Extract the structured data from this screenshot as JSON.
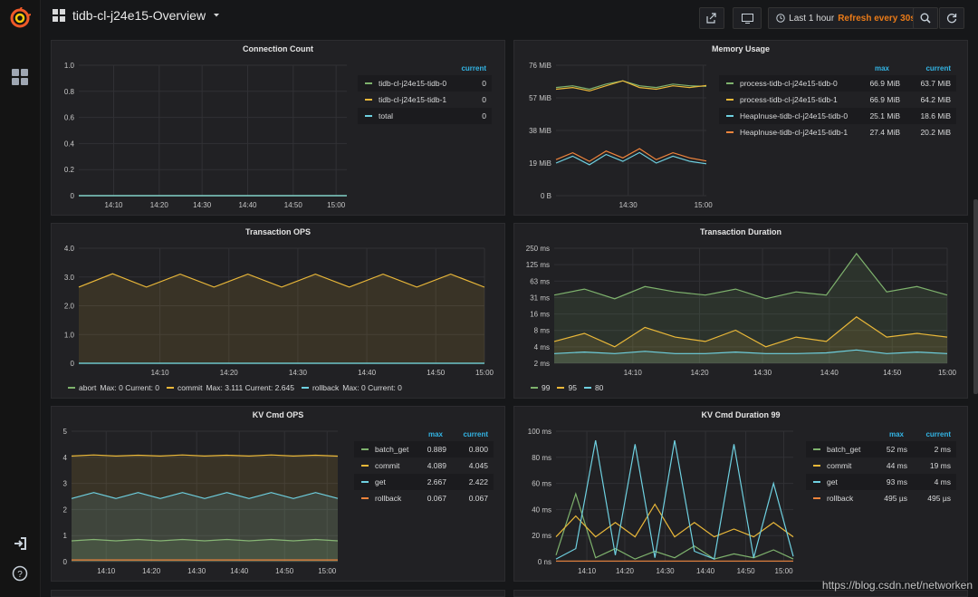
{
  "dashboard": {
    "title": "tidb-cl-j24e15-Overview"
  },
  "toolbar": {
    "time_range": "Last 1 hour",
    "refresh": "Refresh every 30s"
  },
  "icons": {
    "logo": "grafana-logo-icon",
    "dashboards": "dashboards-icon",
    "signin": "sign-in-icon",
    "help": "help-icon",
    "share": "share-icon",
    "tv": "tv-mode-icon",
    "clock": "clock-icon",
    "search": "zoom-out-icon",
    "refresh": "refresh-icon",
    "caret": "caret-down-icon"
  },
  "colors": {
    "green": "#7eb26d",
    "yellow": "#eab839",
    "cyan": "#6ed0e0",
    "orange": "#ef843c",
    "accent_blue": "#33b5e5",
    "refresh_orange": "#eb7b18"
  },
  "panels": {
    "connection_count": {
      "title": "Connection Count",
      "legend_header": {
        "current": "current"
      },
      "legend": [
        {
          "name": "tidb-cl-j24e15-tidb-0",
          "current": "0",
          "color": "#7eb26d"
        },
        {
          "name": "tidb-cl-j24e15-tidb-1",
          "current": "0",
          "color": "#eab839"
        },
        {
          "name": "total",
          "current": "0",
          "color": "#6ed0e0"
        }
      ]
    },
    "memory_usage": {
      "title": "Memory Usage",
      "legend_header": {
        "max": "max",
        "current": "current"
      },
      "legend": [
        {
          "name": "process-tidb-cl-j24e15-tidb-0",
          "max": "66.9 MiB",
          "current": "63.7 MiB",
          "color": "#7eb26d"
        },
        {
          "name": "process-tidb-cl-j24e15-tidb-1",
          "max": "66.9 MiB",
          "current": "64.2 MiB",
          "color": "#eab839"
        },
        {
          "name": "HeapInuse-tidb-cl-j24e15-tidb-0",
          "max": "25.1 MiB",
          "current": "18.6 MiB",
          "color": "#6ed0e0"
        },
        {
          "name": "HeapInuse-tidb-cl-j24e15-tidb-1",
          "max": "27.4 MiB",
          "current": "20.2 MiB",
          "color": "#ef843c"
        }
      ]
    },
    "transaction_ops": {
      "title": "Transaction OPS",
      "legend": [
        {
          "name": "abort",
          "stats": "Max: 0  Current: 0",
          "color": "#7eb26d"
        },
        {
          "name": "commit",
          "stats": "Max: 3.111  Current: 2.645",
          "color": "#eab839"
        },
        {
          "name": "rollback",
          "stats": "Max: 0  Current: 0",
          "color": "#6ed0e0"
        }
      ]
    },
    "transaction_duration": {
      "title": "Transaction Duration",
      "legend": [
        {
          "name": "99",
          "color": "#7eb26d"
        },
        {
          "name": "95",
          "color": "#eab839"
        },
        {
          "name": "80",
          "color": "#6ed0e0"
        }
      ]
    },
    "kv_cmd_ops": {
      "title": "KV Cmd OPS",
      "legend_header": {
        "max": "max",
        "current": "current"
      },
      "legend": [
        {
          "name": "batch_get",
          "max": "0.889",
          "current": "0.800",
          "color": "#7eb26d"
        },
        {
          "name": "commit",
          "max": "4.089",
          "current": "4.045",
          "color": "#eab839"
        },
        {
          "name": "get",
          "max": "2.667",
          "current": "2.422",
          "color": "#6ed0e0"
        },
        {
          "name": "rollback",
          "max": "0.067",
          "current": "0.067",
          "color": "#ef843c"
        }
      ]
    },
    "kv_cmd_duration": {
      "title": "KV Cmd Duration 99",
      "legend_header": {
        "max": "max",
        "current": "current"
      },
      "legend": [
        {
          "name": "batch_get",
          "max": "52 ms",
          "current": "2 ms",
          "color": "#7eb26d"
        },
        {
          "name": "commit",
          "max": "44 ms",
          "current": "19 ms",
          "color": "#eab839"
        },
        {
          "name": "get",
          "max": "93 ms",
          "current": "4 ms",
          "color": "#6ed0e0"
        },
        {
          "name": "rollback",
          "max": "495 µs",
          "current": "495 µs",
          "color": "#ef843c"
        }
      ]
    }
  },
  "watermark": "https://blog.csdn.net/networken",
  "chart_data": [
    {
      "type": "line",
      "title": "Connection Count",
      "y_ticks": [
        "1.0",
        "0.8",
        "0.6",
        "0.4",
        "0.2",
        "0"
      ],
      "ylim": [
        0,
        1
      ],
      "x_ticks": [
        "14:10",
        "14:20",
        "14:30",
        "14:40",
        "14:50",
        "15:00"
      ],
      "series": [
        {
          "name": "tidb-cl-j24e15-tidb-0",
          "values": [
            0,
            0
          ]
        },
        {
          "name": "tidb-cl-j24e15-tidb-1",
          "values": [
            0,
            0
          ]
        },
        {
          "name": "total",
          "values": [
            0,
            0
          ]
        }
      ]
    },
    {
      "type": "line",
      "title": "Memory Usage",
      "y_ticks": [
        "76 MiB",
        "57 MiB",
        "38 MiB",
        "19 MiB",
        "0 B"
      ],
      "ylim": [
        0,
        76
      ],
      "x_ticks": [
        "14:30",
        "15:00"
      ],
      "series": [
        {
          "name": "process-tidb-cl-j24e15-tidb-0",
          "values": [
            63,
            64,
            62,
            65,
            66.9,
            64,
            63,
            65,
            64,
            63.7
          ]
        },
        {
          "name": "process-tidb-cl-j24e15-tidb-1",
          "values": [
            62,
            63,
            61,
            64,
            66.9,
            63,
            62,
            64,
            63,
            64.2
          ]
        },
        {
          "name": "HeapInuse-tidb-cl-j24e15-tidb-0",
          "values": [
            19,
            23,
            18,
            24,
            20,
            25.1,
            19,
            23,
            20,
            18.6
          ]
        },
        {
          "name": "HeapInuse-tidb-cl-j24e15-tidb-1",
          "values": [
            21,
            25,
            20,
            26,
            22,
            27.4,
            21,
            25,
            22,
            20.2
          ]
        }
      ]
    },
    {
      "type": "area",
      "title": "Transaction OPS",
      "y_ticks": [
        "4.0",
        "3.0",
        "2.0",
        "1.0",
        "0"
      ],
      "ylim": [
        0,
        4
      ],
      "x_ticks": [
        "14:10",
        "14:20",
        "14:30",
        "14:40",
        "14:50",
        "15:00"
      ],
      "series": [
        {
          "name": "abort",
          "values": [
            0,
            0
          ]
        },
        {
          "name": "commit",
          "values": [
            2.65,
            3.111,
            2.65,
            3.1,
            2.65,
            3.1,
            2.65,
            3.1,
            2.65,
            3.1,
            2.65,
            3.1,
            2.645
          ]
        },
        {
          "name": "rollback",
          "values": [
            0,
            0
          ]
        }
      ]
    },
    {
      "type": "area",
      "title": "Transaction Duration",
      "y_ticks": [
        "250 ms",
        "125 ms",
        "63 ms",
        "31 ms",
        "16 ms",
        "8 ms",
        "4 ms",
        "2 ms"
      ],
      "log_scale": true,
      "x_ticks": [
        "14:10",
        "14:20",
        "14:30",
        "14:40",
        "14:50",
        "15:00"
      ],
      "series": [
        {
          "name": "99",
          "values": [
            35,
            45,
            30,
            50,
            40,
            35,
            45,
            30,
            40,
            35,
            200,
            40,
            50,
            35
          ]
        },
        {
          "name": "95",
          "values": [
            5,
            7,
            4,
            9,
            6,
            5,
            8,
            4,
            6,
            5,
            14,
            6,
            7,
            6
          ]
        },
        {
          "name": "80",
          "values": [
            3,
            3.2,
            3,
            3.3,
            3,
            3,
            3.2,
            3,
            3,
            3.1,
            3.5,
            3,
            3.2,
            3
          ]
        }
      ]
    },
    {
      "type": "area",
      "title": "KV Cmd OPS",
      "y_ticks": [
        "5",
        "4",
        "3",
        "2",
        "1",
        "0"
      ],
      "ylim": [
        0,
        5
      ],
      "x_ticks": [
        "14:10",
        "14:20",
        "14:30",
        "14:40",
        "14:50",
        "15:00"
      ],
      "series": [
        {
          "name": "batch_get",
          "values": [
            0.8,
            0.85,
            0.8,
            0.85,
            0.8,
            0.85,
            0.8,
            0.85,
            0.8,
            0.85,
            0.8,
            0.85,
            0.8
          ]
        },
        {
          "name": "commit",
          "values": [
            4.05,
            4.09,
            4.05,
            4.08,
            4.05,
            4.09,
            4.05,
            4.08,
            4.05,
            4.09,
            4.05,
            4.08,
            4.045
          ]
        },
        {
          "name": "get",
          "values": [
            2.42,
            2.65,
            2.42,
            2.65,
            2.42,
            2.65,
            2.42,
            2.65,
            2.42,
            2.65,
            2.42,
            2.65,
            2.422
          ]
        },
        {
          "name": "rollback",
          "values": [
            0.067,
            0.067
          ]
        }
      ]
    },
    {
      "type": "line",
      "title": "KV Cmd Duration 99",
      "y_ticks": [
        "100 ms",
        "80 ms",
        "60 ms",
        "40 ms",
        "20 ms",
        "0 ns"
      ],
      "ylim": [
        0,
        100
      ],
      "x_ticks": [
        "14:10",
        "14:20",
        "14:30",
        "14:40",
        "14:50",
        "15:00"
      ],
      "series": [
        {
          "name": "batch_get",
          "values": [
            5,
            52,
            3,
            10,
            2,
            8,
            3,
            12,
            2,
            6,
            3,
            9,
            2
          ]
        },
        {
          "name": "commit",
          "values": [
            19,
            35,
            19,
            30,
            19,
            44,
            19,
            30,
            19,
            25,
            19,
            30,
            19
          ]
        },
        {
          "name": "get",
          "values": [
            2,
            10,
            93,
            5,
            90,
            3,
            93,
            8,
            2,
            90,
            3,
            60,
            4
          ]
        },
        {
          "name": "rollback",
          "values": [
            0.5,
            0.5
          ]
        }
      ]
    }
  ]
}
